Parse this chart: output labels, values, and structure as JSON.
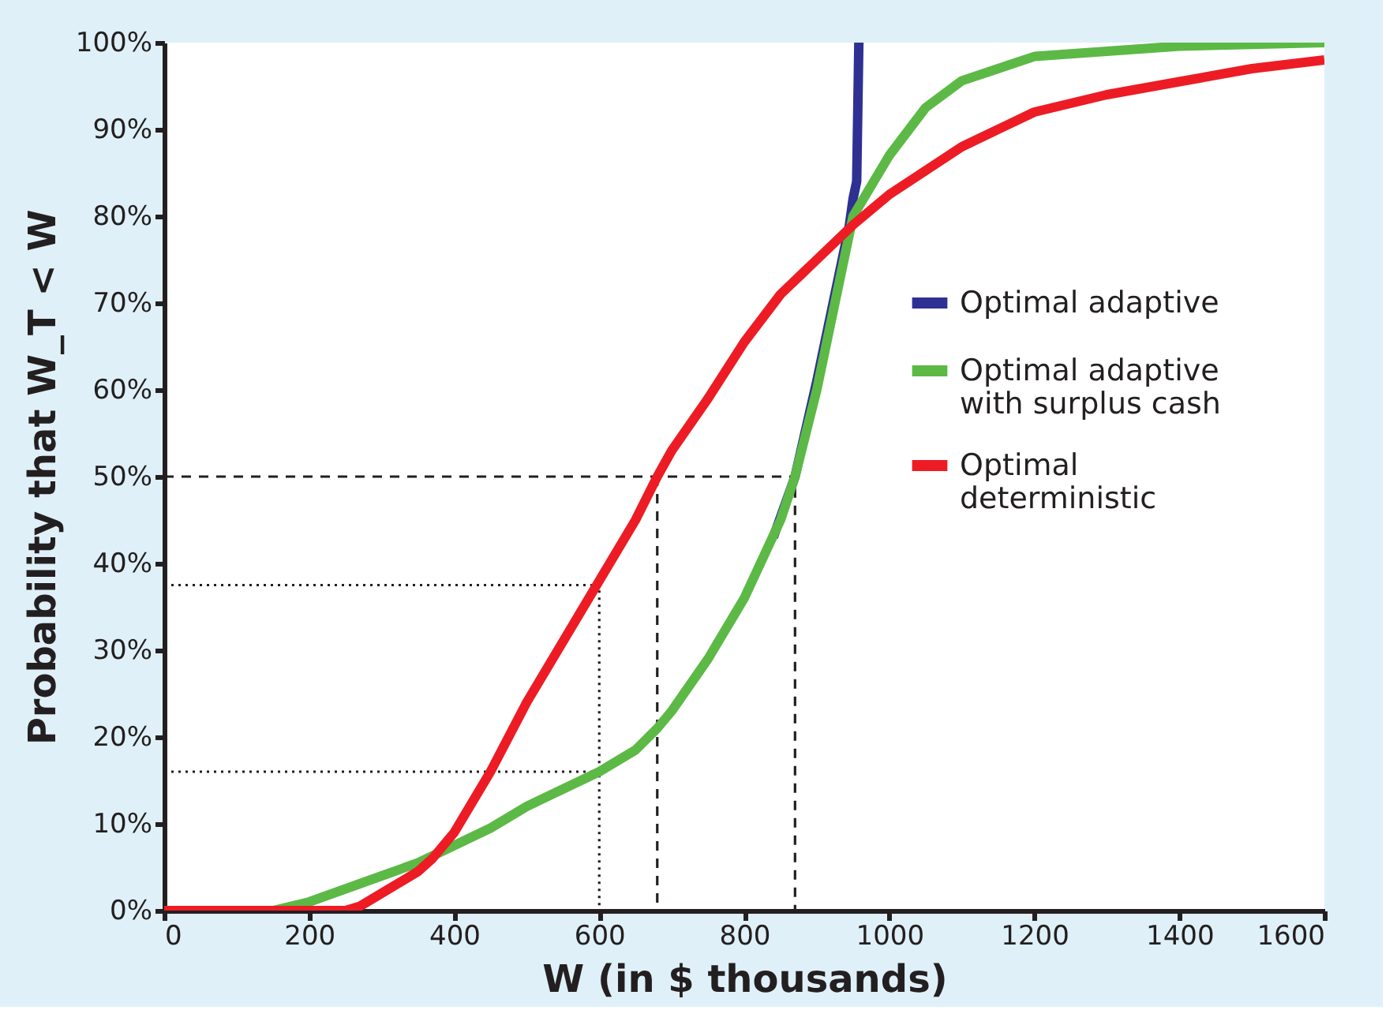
{
  "chart_data": {
    "type": "line",
    "xlabel": "W (in $ thousands)",
    "ylabel": "Probability that W_T < W",
    "xlim": [
      0,
      1600
    ],
    "xticks": [
      0,
      200,
      400,
      600,
      800,
      1000,
      1200,
      1400,
      1600
    ],
    "ylim": [
      0,
      100
    ],
    "yticks": [
      {
        "value": 0,
        "label": "0%"
      },
      {
        "value": 10,
        "label": "10%"
      },
      {
        "value": 20,
        "label": "20%"
      },
      {
        "value": 30,
        "label": "30%"
      },
      {
        "value": 40,
        "label": "40%"
      },
      {
        "value": 50,
        "label": "50%"
      },
      {
        "value": 60,
        "label": "60%"
      },
      {
        "value": 70,
        "label": "70%"
      },
      {
        "value": 80,
        "label": "80%"
      },
      {
        "value": 90,
        "label": "90%"
      },
      {
        "value": 100,
        "label": "100%"
      }
    ],
    "grid": false,
    "legend": "right",
    "marker": "none",
    "line_style": "solid",
    "series": [
      {
        "name": "Optimal adaptive",
        "color": "#2e3192",
        "x": [
          840,
          870,
          900,
          925,
          945,
          950,
          955,
          958
        ],
        "values": [
          43,
          50,
          61,
          71,
          79,
          82,
          84,
          100
        ]
      },
      {
        "name": "Optimal adaptive\nwith surplus cash",
        "color": "#5cb946",
        "x": [
          0,
          150,
          200,
          250,
          300,
          350,
          400,
          450,
          500,
          550,
          600,
          650,
          680,
          700,
          750,
          800,
          850,
          870,
          900,
          950,
          1000,
          1050,
          1100,
          1150,
          1200,
          1300,
          1400,
          1600
        ],
        "values": [
          0,
          0,
          1,
          2.5,
          4,
          5.5,
          7.5,
          9.5,
          12,
          14,
          16,
          18.5,
          21,
          23,
          29,
          36,
          45,
          50,
          60,
          80,
          87,
          92.5,
          95.6,
          97,
          98.4,
          99,
          99.6,
          100
        ]
      },
      {
        "name": "Optimal\ndeterministic",
        "color": "#ed1c24",
        "x": [
          0,
          250,
          270,
          300,
          350,
          370,
          400,
          450,
          500,
          550,
          600,
          650,
          680,
          700,
          750,
          800,
          850,
          900,
          950,
          1000,
          1100,
          1200,
          1300,
          1400,
          1500,
          1600
        ],
        "values": [
          0,
          0,
          0.5,
          2,
          4.5,
          6,
          9,
          16,
          24,
          31,
          38,
          45,
          50,
          53,
          59,
          65.5,
          71,
          75,
          79,
          82.5,
          88,
          92,
          94,
          95.5,
          97,
          98
        ]
      },
      {
        "color": "#231f20",
        "line_style": "dashed",
        "x": [
          0,
          870,
          870
        ],
        "values": [
          50,
          50,
          0
        ]
      },
      {
        "color": "#231f20",
        "line_style": "dashed",
        "x": [
          680,
          680
        ],
        "values": [
          50,
          0
        ]
      },
      {
        "color": "#231f20",
        "line_style": "dotted",
        "x": [
          0,
          600,
          600
        ],
        "values": [
          37.5,
          37.5,
          0
        ]
      },
      {
        "color": "#231f20",
        "line_style": "dotted",
        "x": [
          0,
          600
        ],
        "values": [
          16,
          16
        ]
      }
    ]
  }
}
